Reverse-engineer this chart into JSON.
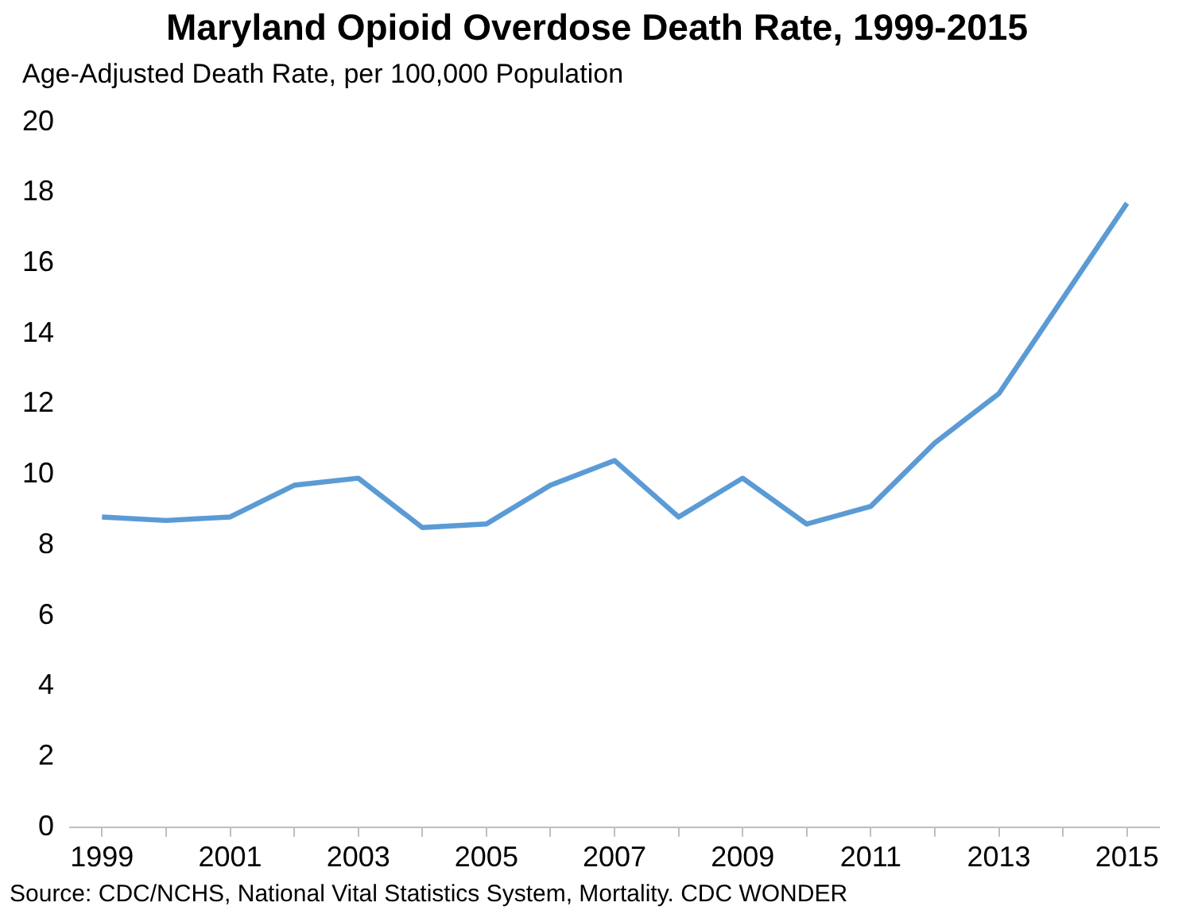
{
  "chart_data": {
    "type": "line",
    "title": "Maryland Opioid Overdose Death Rate, 1999-2015",
    "ylabel": "Age-Adjusted Death Rate, per 100,000 Population",
    "categories": [
      "1999",
      null,
      "2001",
      null,
      "2003",
      null,
      "2005",
      null,
      "2007",
      null,
      "2009",
      null,
      "2011",
      null,
      "2013",
      null,
      "2015"
    ],
    "series": [
      {
        "color": "#5b9bd5",
        "values": [
          8.8,
          8.7,
          8.8,
          9.7,
          9.9,
          8.5,
          8.6,
          9.7,
          10.4,
          8.8,
          9.9,
          8.6,
          9.1,
          10.9,
          12.3,
          15.0,
          17.7
        ]
      }
    ],
    "ylim": [
      0,
      20
    ],
    "yticks": [
      0,
      2,
      4,
      6,
      8,
      10,
      12,
      14,
      16,
      18,
      20
    ],
    "grid": false,
    "legend": false,
    "marker": "none",
    "line_style": "solid",
    "annotations": [
      "Source:  CDC/NCHS, National Vital Statistics System, Mortality. CDC WONDER"
    ]
  }
}
